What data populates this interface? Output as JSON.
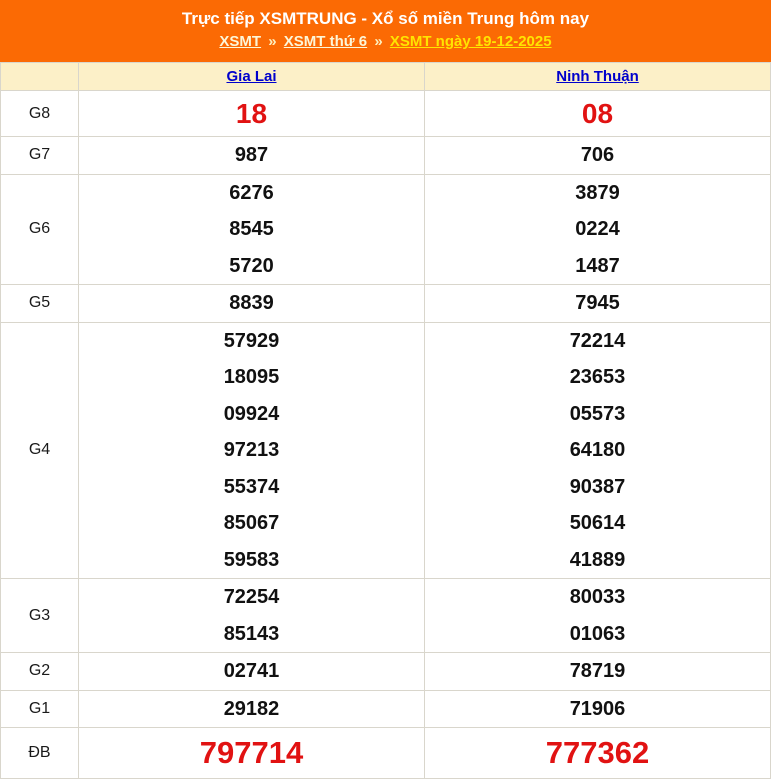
{
  "colors": {
    "header_bg": "#FB6A04",
    "header_row_bg": "#FCF0C8",
    "highlight_red": "#E11212",
    "province_link_blue": "#0000CC",
    "breadcrumb_link": "#FDF6D8",
    "breadcrumb_active": "#FFE400",
    "number_black": "#111111"
  },
  "header": {
    "title": "Trực tiếp XSMTRUNG - Xổ số miền Trung hôm nay",
    "separator": "»",
    "breadcrumb": [
      {
        "label": "XSMT"
      },
      {
        "label": "XSMT thứ 6"
      },
      {
        "label": "XSMT ngày 19-12-2025"
      }
    ]
  },
  "table": {
    "columns": [
      "Gia Lai",
      "Ninh Thuận"
    ],
    "rows": [
      {
        "label": "G8",
        "highlight": true,
        "gia_lai": [
          "18"
        ],
        "ninh_thuan": [
          "08"
        ]
      },
      {
        "label": "G7",
        "highlight": false,
        "gia_lai": [
          "987"
        ],
        "ninh_thuan": [
          "706"
        ]
      },
      {
        "label": "G6",
        "highlight": false,
        "gia_lai": [
          "6276",
          "8545",
          "5720"
        ],
        "ninh_thuan": [
          "3879",
          "0224",
          "1487"
        ]
      },
      {
        "label": "G5",
        "highlight": false,
        "gia_lai": [
          "8839"
        ],
        "ninh_thuan": [
          "7945"
        ]
      },
      {
        "label": "G4",
        "highlight": false,
        "gia_lai": [
          "57929",
          "18095",
          "09924",
          "97213",
          "55374",
          "85067",
          "59583"
        ],
        "ninh_thuan": [
          "72214",
          "23653",
          "05573",
          "64180",
          "90387",
          "50614",
          "41889"
        ]
      },
      {
        "label": "G3",
        "highlight": false,
        "gia_lai": [
          "72254",
          "85143"
        ],
        "ninh_thuan": [
          "80033",
          "01063"
        ]
      },
      {
        "label": "G2",
        "highlight": false,
        "gia_lai": [
          "02741"
        ],
        "ninh_thuan": [
          "78719"
        ]
      },
      {
        "label": "G1",
        "highlight": false,
        "gia_lai": [
          "29182"
        ],
        "ninh_thuan": [
          "71906"
        ]
      },
      {
        "label": "ĐB",
        "highlight": true,
        "gia_lai": [
          "797714"
        ],
        "ninh_thuan": [
          "777362"
        ]
      }
    ]
  }
}
